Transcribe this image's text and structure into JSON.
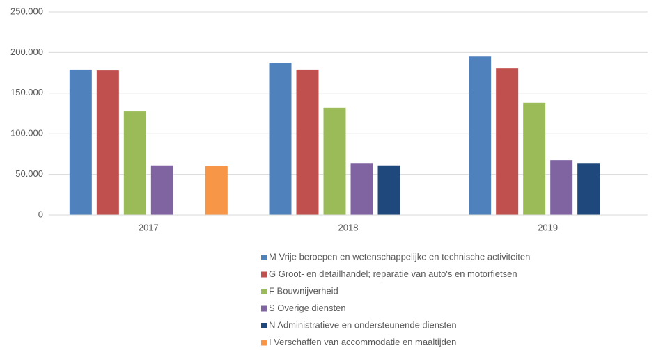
{
  "chart_data": {
    "type": "bar",
    "categories": [
      "2017",
      "2018",
      "2019"
    ],
    "series": [
      {
        "name": "M Vrije beroepen en wetenschappelijke en technische activiteiten",
        "color": "#4f81bd",
        "values": [
          179000,
          187500,
          195000
        ]
      },
      {
        "name": "G Groot- en detailhandel; reparatie van auto's en motorfietsen",
        "color": "#c0504d",
        "values": [
          178000,
          179000,
          180500
        ]
      },
      {
        "name": "F Bouwnijverheid",
        "color": "#9bbb59",
        "values": [
          127500,
          132000,
          138000
        ]
      },
      {
        "name": "S Overige diensten",
        "color": "#8064a2",
        "values": [
          61000,
          64000,
          67500
        ]
      },
      {
        "name": "N Administratieve en ondersteunende diensten",
        "color": "#1f497d",
        "values": [
          null,
          61000,
          64000
        ]
      },
      {
        "name": "I Verschaffen van accommodatie en maaltijden",
        "color": "#f79646",
        "values": [
          60000,
          null,
          null
        ]
      }
    ],
    "ylim": [
      0,
      250000
    ],
    "yticks": [
      0,
      {
        "value": 50000,
        "label": "50.000"
      },
      {
        "value": 100000,
        "label": "100.000"
      },
      {
        "value": 150000,
        "label": "150.000"
      },
      {
        "value": 200000,
        "label": "200.000"
      },
      {
        "value": 250000,
        "label": "250.000"
      }
    ],
    "grid": true
  }
}
